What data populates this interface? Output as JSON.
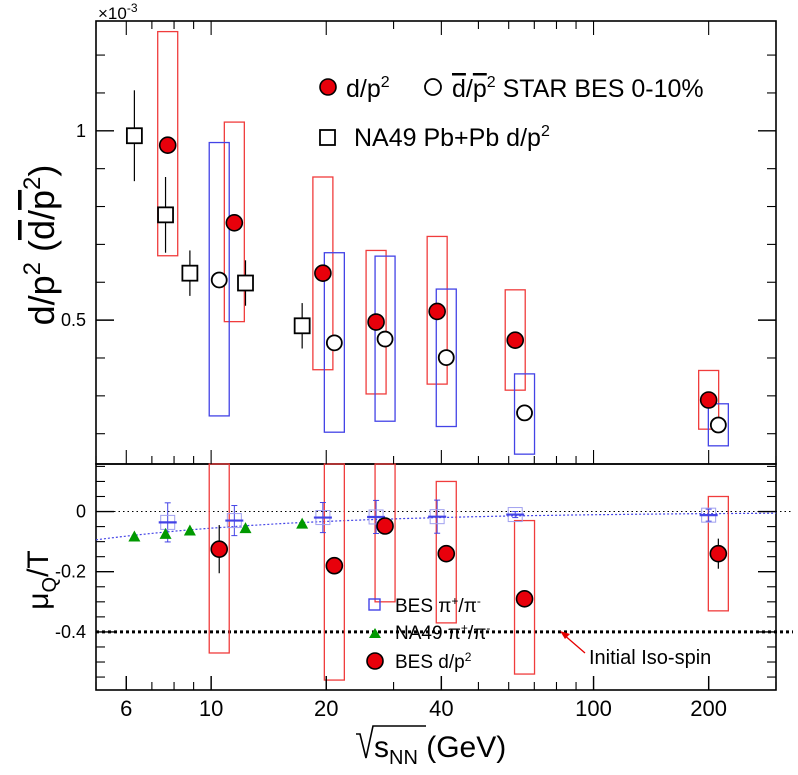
{
  "chart_data": [
    {
      "type": "scatter",
      "panel": "top",
      "xscale": "log",
      "xlim": [
        5,
        300
      ],
      "ylim": [
        0.00012,
        0.00129
      ],
      "y_multiplier_label": "×10",
      "y_multiplier_exp": "-3",
      "ylabel": {
        "main": "d/p",
        "exp": "2",
        "paren_open": " (",
        "dbar": "d",
        "slash": "/",
        "pbar": "p",
        "exp2": "2",
        "paren_close": ")"
      },
      "yticks": [
        {
          "value": 0.001,
          "label": "1"
        },
        {
          "value": 0.0005,
          "label": "0.5"
        }
      ],
      "legend": {
        "placement": "top-right",
        "d_label": "d/p",
        "d_exp": "2",
        "dbar_d": "d",
        "dbar_slash": "/",
        "dbar_p": "p",
        "dbar_exp": "2",
        "star_tail": " STAR BES 0-10%",
        "na49_label": "NA49 Pb+Pb d/p",
        "na49_exp": "2"
      },
      "series": [
        {
          "name": "d/p²",
          "marker": "circle-red",
          "points": [
            {
              "x": 7.7,
              "y": 0.000962,
              "sys": [
                0.00067,
                0.001262
              ]
            },
            {
              "x": 11.5,
              "y": 0.000757,
              "sys": [
                0.000496,
                0.001023
              ]
            },
            {
              "x": 19.6,
              "y": 0.000624,
              "sys": [
                0.000369,
                0.000878
              ]
            },
            {
              "x": 27,
              "y": 0.000495,
              "sys": [
                0.000305,
                0.000684
              ]
            },
            {
              "x": 39,
              "y": 0.000523,
              "sys": [
                0.000331,
                0.000721
              ]
            },
            {
              "x": 62.4,
              "y": 0.000447,
              "sys": [
                0.000315,
                0.00058
              ]
            },
            {
              "x": 200,
              "y": 0.000289,
              "sys": [
                0.000212,
                0.000367
              ]
            }
          ]
        },
        {
          "name": "d̄/p̄²",
          "marker": "circle-open",
          "points": [
            {
              "x": 10.5,
              "y": 0.000606,
              "sys": [
                0.000247,
                0.000969
              ]
            },
            {
              "x": 21,
              "y": 0.00044,
              "sys": [
                0.000204,
                0.000678
              ]
            },
            {
              "x": 28.5,
              "y": 0.00045,
              "sys": [
                0.000233,
                0.000669
              ]
            },
            {
              "x": 41.2,
              "y": 0.000401,
              "sys": [
                0.000219,
                0.000582
              ]
            },
            {
              "x": 66,
              "y": 0.000255,
              "sys": [
                0.000146,
                0.000358
              ]
            },
            {
              "x": 212,
              "y": 0.000223,
              "sys": [
                0.000168,
                0.000279
              ]
            }
          ]
        },
        {
          "name": "NA49 Pb+Pb d/p²",
          "marker": "square-open",
          "points": [
            {
              "x": 6.3,
              "y": 0.000987,
              "err": 0.00012
            },
            {
              "x": 7.6,
              "y": 0.000778,
              "err": 0.0001
            },
            {
              "x": 8.8,
              "y": 0.000624,
              "err": 6e-05
            },
            {
              "x": 12.3,
              "y": 0.000598,
              "err": 6e-05
            },
            {
              "x": 17.3,
              "y": 0.000485,
              "err": 6e-05
            }
          ]
        }
      ]
    },
    {
      "type": "scatter",
      "panel": "bottom",
      "xscale": "log",
      "xlim": [
        5,
        300
      ],
      "ylim": [
        -0.593,
        0.158
      ],
      "xlabel": {
        "sqrt": "√",
        "s": "s",
        "sub": "NN",
        "unit": " (GeV)"
      },
      "ylabel": {
        "mu": "μ",
        "sub": "Q",
        "slash": "/",
        "T": "T"
      },
      "xticks": [
        {
          "value": 6,
          "label": "6"
        },
        {
          "value": 10,
          "label": "10"
        },
        {
          "value": 20,
          "label": "20"
        },
        {
          "value": 40,
          "label": "40"
        },
        {
          "value": 100,
          "label": "100"
        },
        {
          "value": 200,
          "label": "200"
        }
      ],
      "yticks": [
        {
          "value": 0,
          "label": "0"
        },
        {
          "value": -0.2,
          "label": "-0.2"
        },
        {
          "value": -0.4,
          "label": "-0.4"
        }
      ],
      "legend": {
        "bes_pi_label": "BES π",
        "bes_pi_sup1": "+",
        "bes_pi_slash": "/π",
        "bes_pi_sup2": "-",
        "na49_pi_label": "NA49 π",
        "na49_pi_sup1": "+",
        "na49_pi_slash": "/π",
        "na49_pi_sup2": "-",
        "bes_d_label": "BES d/p",
        "bes_d_exp": "2"
      },
      "annotation": {
        "text": "Initial Iso-spin",
        "y": -0.4
      },
      "series": [
        {
          "name": "BES π⁺/π⁻",
          "marker": "square-open-blue",
          "points": [
            {
              "x": 7.7,
              "y": -0.036,
              "err": 0.065
            },
            {
              "x": 11.5,
              "y": -0.03,
              "err": 0.05
            },
            {
              "x": 19.6,
              "y": -0.02,
              "err": 0.05
            },
            {
              "x": 27,
              "y": -0.018,
              "err": 0.055
            },
            {
              "x": 39,
              "y": -0.017,
              "err": 0.055
            },
            {
              "x": 62.4,
              "y": -0.01,
              "err": 0.01
            },
            {
              "x": 200,
              "y": -0.012,
              "err": 0.02
            }
          ]
        },
        {
          "name": "NA49 π⁺/π⁻",
          "marker": "triangle-green",
          "points": [
            {
              "x": 6.3,
              "y": -0.083
            },
            {
              "x": 7.6,
              "y": -0.074
            },
            {
              "x": 8.8,
              "y": -0.063
            },
            {
              "x": 12.3,
              "y": -0.055
            },
            {
              "x": 17.3,
              "y": -0.04
            }
          ]
        },
        {
          "name": "BES d/p²",
          "marker": "circle-red",
          "points": [
            {
              "x": 10.5,
              "y": -0.125,
              "err": 0.08,
              "sys": [
                -0.47,
                0.158
              ]
            },
            {
              "x": 21,
              "y": -0.18,
              "err": 0.02,
              "sys": [
                -0.56,
                0.158
              ]
            },
            {
              "x": 28.5,
              "y": -0.048,
              "err": 0.02,
              "sys": [
                -0.3,
                0.158
              ]
            },
            {
              "x": 41.2,
              "y": -0.14,
              "err": 0.02,
              "sys": [
                -0.37,
                0.1
              ]
            },
            {
              "x": 66,
              "y": -0.29,
              "err": 0.02,
              "sys": [
                -0.54,
                -0.03
              ]
            },
            {
              "x": 212,
              "y": -0.14,
              "err": 0.05,
              "sys": [
                -0.33,
                0.05
              ]
            }
          ]
        }
      ]
    }
  ],
  "colors": {
    "sys_red": "#f03c3c",
    "sys_blue": "#4343e6",
    "marker_red": "#e8000b",
    "triangle_green": "#009900",
    "arrow_red": "#e60000"
  }
}
